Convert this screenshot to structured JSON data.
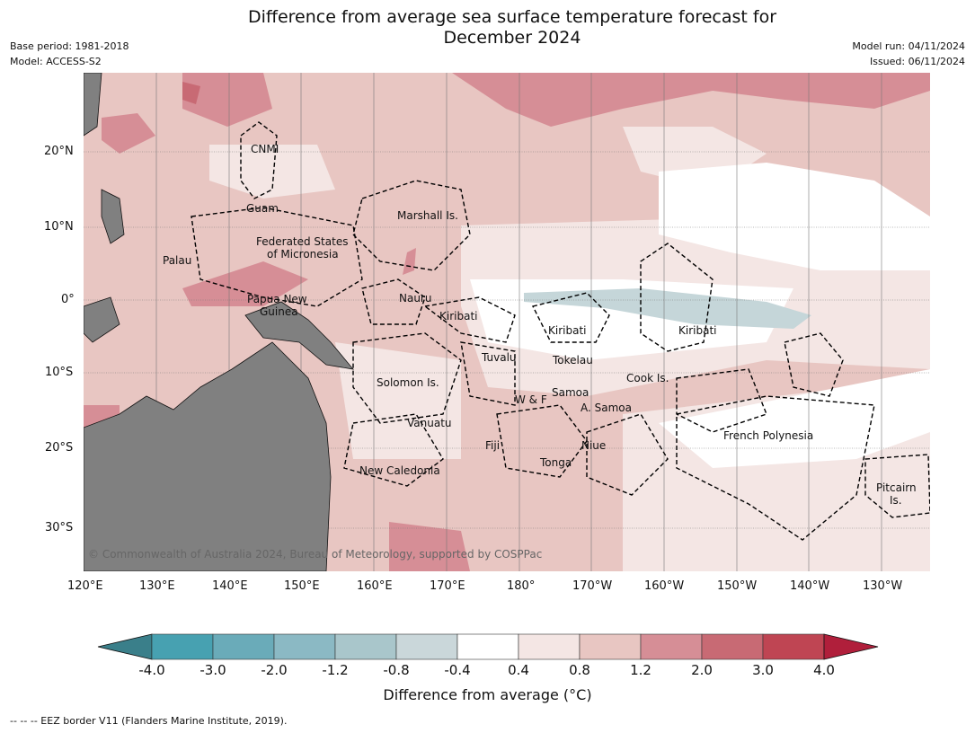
{
  "title_line1": "Difference from average sea surface temperature forecast for",
  "title_line2": "December 2024",
  "meta_left": [
    "Base period: 1981-2018",
    "Model: ACCESS-S2"
  ],
  "meta_right": [
    "Model run: 04/11/2024",
    "Issued: 06/11/2024"
  ],
  "lat_ticks": [
    "20°N",
    "10°N",
    "0°",
    "10°S",
    "20°S",
    "30°S"
  ],
  "lon_ticks": [
    "120°E",
    "130°E",
    "140°E",
    "150°E",
    "160°E",
    "170°E",
    "180°",
    "170°W",
    "160°W",
    "150°W",
    "140°W",
    "130°W"
  ],
  "regions": {
    "cnmi": "CNMI",
    "guam": "Guam",
    "marshall": "Marshall Is.",
    "fsm1": "Federated States",
    "fsm2": "of Micronesia",
    "palau": "Palau",
    "nauru": "Nauru",
    "png1": "Papua New",
    "png2": "Guinea",
    "kiribati1": "Kiribati",
    "kiribati2": "Kiribati",
    "kiribati3": "Kiribati",
    "tuvalu": "Tuvalu",
    "tokelau": "Tokelau",
    "cook": "Cook Is.",
    "solomon": "Solomon Is.",
    "samoa": "Samoa",
    "wf": "W & F",
    "asamoa": "A. Samoa",
    "vanuatu": "Vanuatu",
    "frpoly": "French Polynesia",
    "fiji": "Fiji",
    "niue": "Niue",
    "tonga": "Tonga",
    "newcal": "New Caledonia",
    "pitcairn1": "Pitcairn",
    "pitcairn2": "Is."
  },
  "copyright": "© Commonwealth of Australia 2024, Bureau of Meteorology, supported by COSPPac",
  "colorbar": {
    "ticks": [
      "-4.0",
      "-3.0",
      "-2.0",
      "-1.2",
      "-0.8",
      "-0.4",
      "0.4",
      "0.8",
      "1.2",
      "2.0",
      "3.0",
      "4.0"
    ],
    "colors": [
      "#3a7f8a",
      "#47a1b1",
      "#6aabb9",
      "#8bb9c4",
      "#a9c6cb",
      "#cad7da",
      "#ffffff",
      "#f4e6e4",
      "#e8c6c2",
      "#d68e96",
      "#c86a74",
      "#bf4553",
      "#b01f3b"
    ],
    "label": "Difference from average (°C)"
  },
  "footnote": "--  --  -- EEZ border V11 (Flanders Marine Institute, 2019)."
}
